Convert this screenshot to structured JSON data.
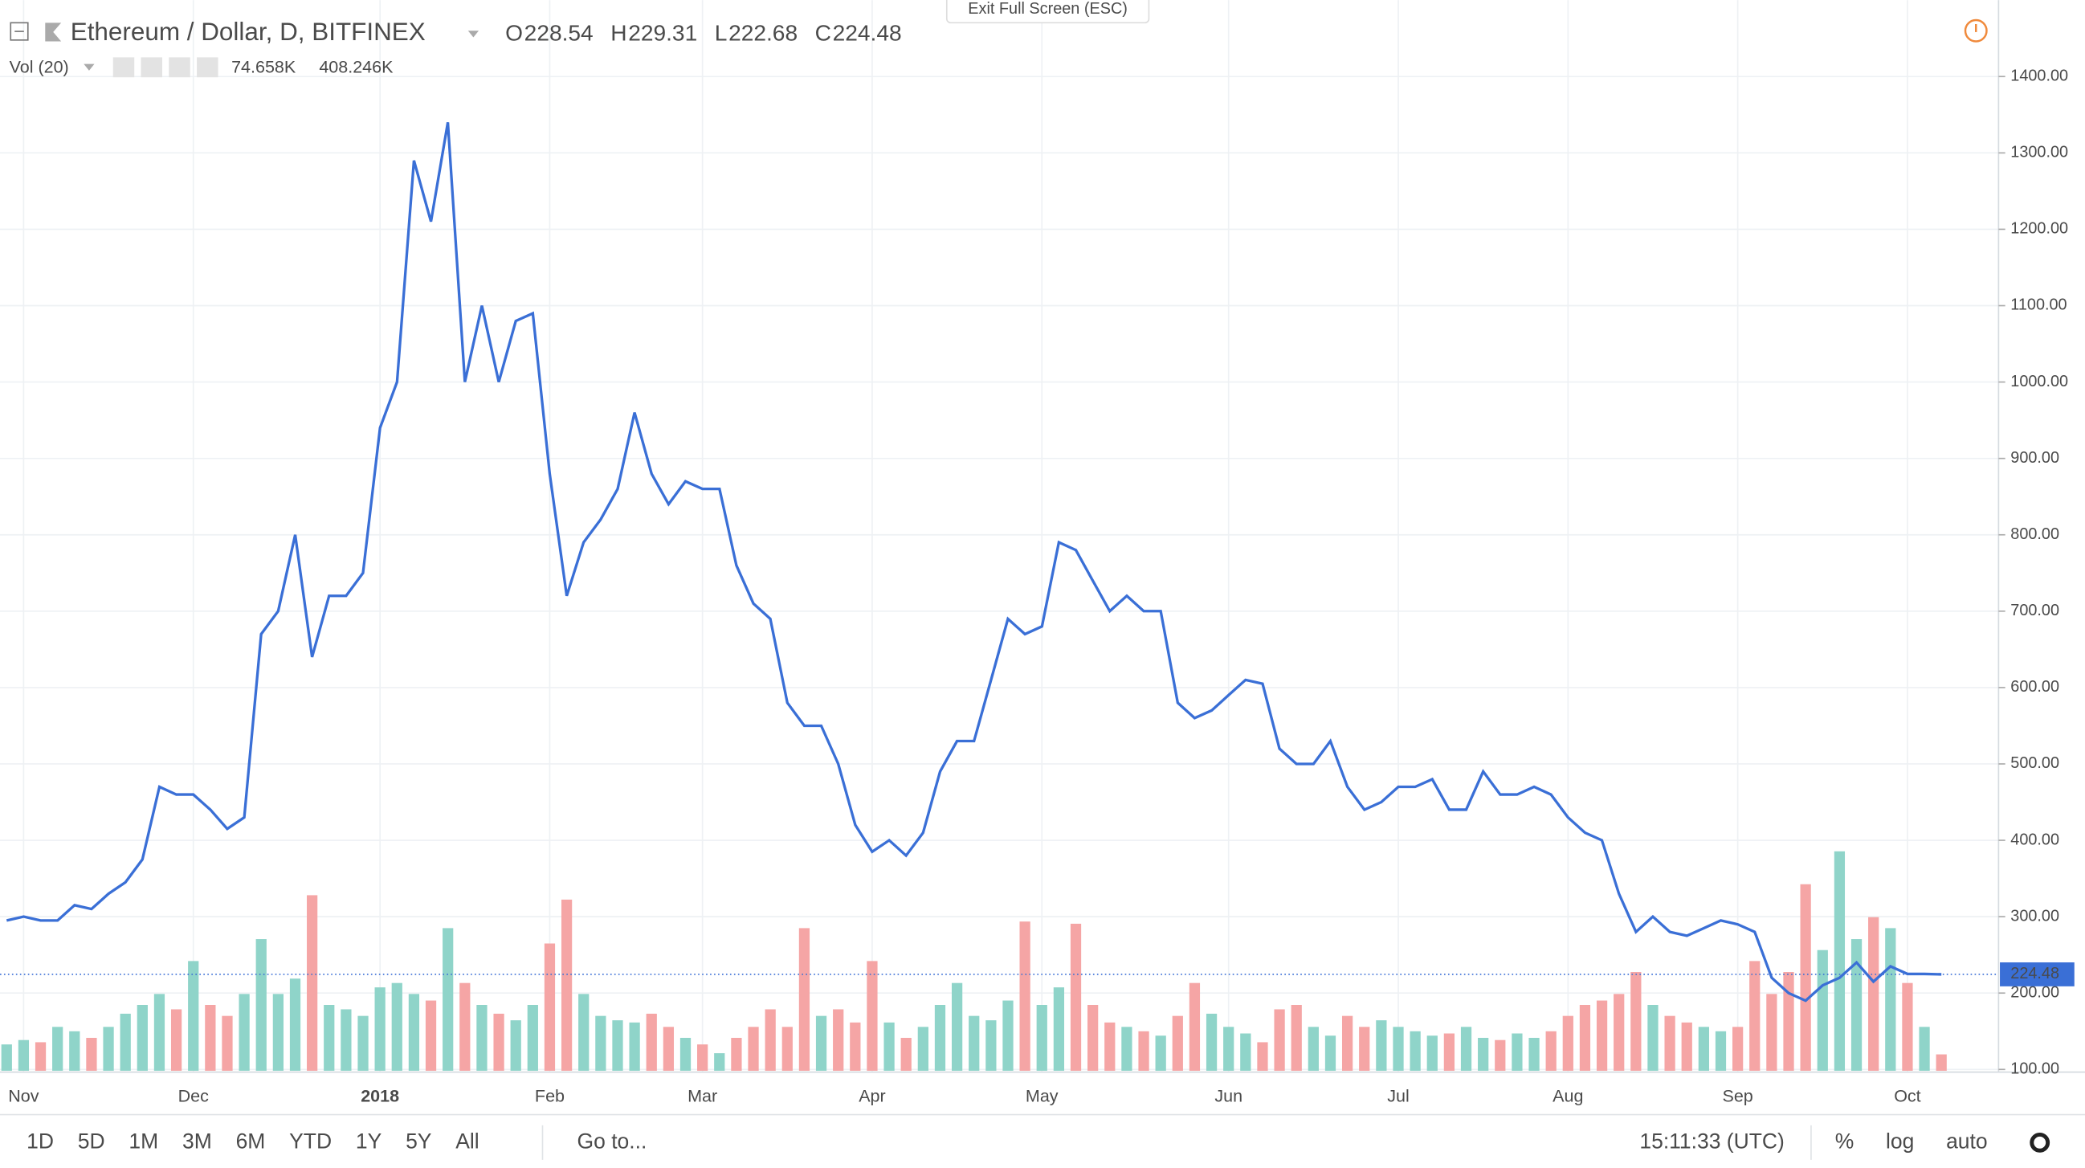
{
  "chart_data": {
    "type": "line",
    "title": "Ethereum / Dollar, D, BITFINEX",
    "ohlc": [
      {
        "label": "O",
        "value": 228.54
      },
      {
        "label": "H",
        "value": 229.31
      },
      {
        "label": "L",
        "value": 222.68
      },
      {
        "label": "C",
        "value": 224.48
      }
    ],
    "color": "#3a6fd6",
    "categories": [
      null,
      "Nov",
      null,
      null,
      null,
      null,
      null,
      null,
      null,
      null,
      null,
      "Dec",
      null,
      null,
      null,
      null,
      null,
      null,
      null,
      null,
      null,
      null,
      "2018",
      null,
      null,
      null,
      null,
      null,
      null,
      null,
      null,
      null,
      "Feb",
      null,
      null,
      null,
      null,
      null,
      null,
      null,
      null,
      "Mar",
      null,
      null,
      null,
      null,
      null,
      null,
      null,
      null,
      null,
      "Apr",
      null,
      null,
      null,
      null,
      null,
      null,
      null,
      null,
      null,
      "May",
      null,
      null,
      null,
      null,
      null,
      null,
      null,
      null,
      null,
      null,
      "Jun",
      null,
      null,
      null,
      null,
      null,
      null,
      null,
      null,
      null,
      "Jul",
      null,
      null,
      null,
      null,
      null,
      null,
      null,
      null,
      null,
      "Aug",
      null,
      null,
      null,
      null,
      null,
      null,
      null,
      null,
      null,
      "Sep",
      null,
      null,
      null,
      null,
      null,
      null,
      null,
      null,
      null,
      "Oct",
      null,
      null
    ],
    "values": [
      295,
      300,
      295,
      295,
      315,
      310,
      330,
      345,
      375,
      470,
      460,
      460,
      440,
      415,
      430,
      670,
      700,
      800,
      640,
      720,
      720,
      750,
      940,
      1000,
      1290,
      1210,
      1340,
      1000,
      1100,
      1000,
      1080,
      1090,
      880,
      720,
      790,
      820,
      860,
      960,
      880,
      840,
      870,
      860,
      860,
      760,
      710,
      690,
      580,
      550,
      550,
      500,
      420,
      385,
      400,
      380,
      410,
      490,
      530,
      530,
      610,
      690,
      670,
      680,
      790,
      780,
      740,
      700,
      720,
      700,
      700,
      580,
      560,
      570,
      590,
      610,
      605,
      520,
      500,
      500,
      530,
      470,
      440,
      450,
      470,
      470,
      480,
      440,
      440,
      490,
      460,
      460,
      470,
      460,
      430,
      410,
      400,
      330,
      280,
      300,
      280,
      275,
      285,
      295,
      290,
      280,
      220,
      200,
      190,
      210,
      220,
      240,
      215,
      235,
      225,
      225,
      224.48
    ],
    "volume": {
      "name": "Vol (20)",
      "last_label": "74.658K",
      "ma_label": "408.246K",
      "up_color": "#8fd4c9",
      "down_color": "#f5a5a5",
      "values": [
        120,
        140,
        130,
        200,
        180,
        150,
        200,
        260,
        300,
        350,
        280,
        500,
        300,
        250,
        350,
        600,
        350,
        420,
        800,
        300,
        280,
        250,
        380,
        400,
        350,
        320,
        650,
        400,
        300,
        260,
        230,
        300,
        580,
        780,
        350,
        250,
        230,
        220,
        260,
        200,
        150,
        120,
        80,
        150,
        200,
        280,
        200,
        650,
        250,
        280,
        220,
        500,
        220,
        150,
        200,
        300,
        400,
        250,
        230,
        320,
        680,
        300,
        380,
        670,
        300,
        220,
        200,
        180,
        160,
        250,
        400,
        260,
        200,
        170,
        130,
        280,
        300,
        200,
        160,
        250,
        200,
        230,
        200,
        180,
        160,
        170,
        200,
        150,
        140,
        170,
        150,
        180,
        250,
        300,
        320,
        350,
        450,
        300,
        250,
        220,
        200,
        180,
        200,
        500,
        350,
        450,
        850,
        550,
        1000,
        600,
        700,
        650,
        400,
        200,
        74.658
      ]
    },
    "ylim": [
      100,
      1500
    ],
    "yticks": [
      {
        "value": 100,
        "label": "100.00"
      },
      {
        "value": 200,
        "label": "200.00"
      },
      {
        "value": 300,
        "label": "300.00"
      },
      {
        "value": 400,
        "label": "400.00"
      },
      {
        "value": 500,
        "label": "500.00"
      },
      {
        "value": 600,
        "label": "600.00"
      },
      {
        "value": 700,
        "label": "700.00"
      },
      {
        "value": 800,
        "label": "800.00"
      },
      {
        "value": 900,
        "label": "900.00"
      },
      {
        "value": 1000,
        "label": "1000.00"
      },
      {
        "value": 1100,
        "label": "1100.00"
      },
      {
        "value": 1200,
        "label": "1200.00"
      },
      {
        "value": 1300,
        "label": "1300.00"
      },
      {
        "value": 1400,
        "label": "1400.00"
      }
    ],
    "grid": true
  },
  "ui": {
    "exit_fullscreen": "Exit Full Screen (ESC)",
    "ranges": [
      "1D",
      "5D",
      "1M",
      "3M",
      "6M",
      "YTD",
      "1Y",
      "5Y",
      "All"
    ],
    "goto": "Go to...",
    "time": "15:11:33 (UTC)",
    "options": [
      "%",
      "log",
      "auto"
    ]
  }
}
